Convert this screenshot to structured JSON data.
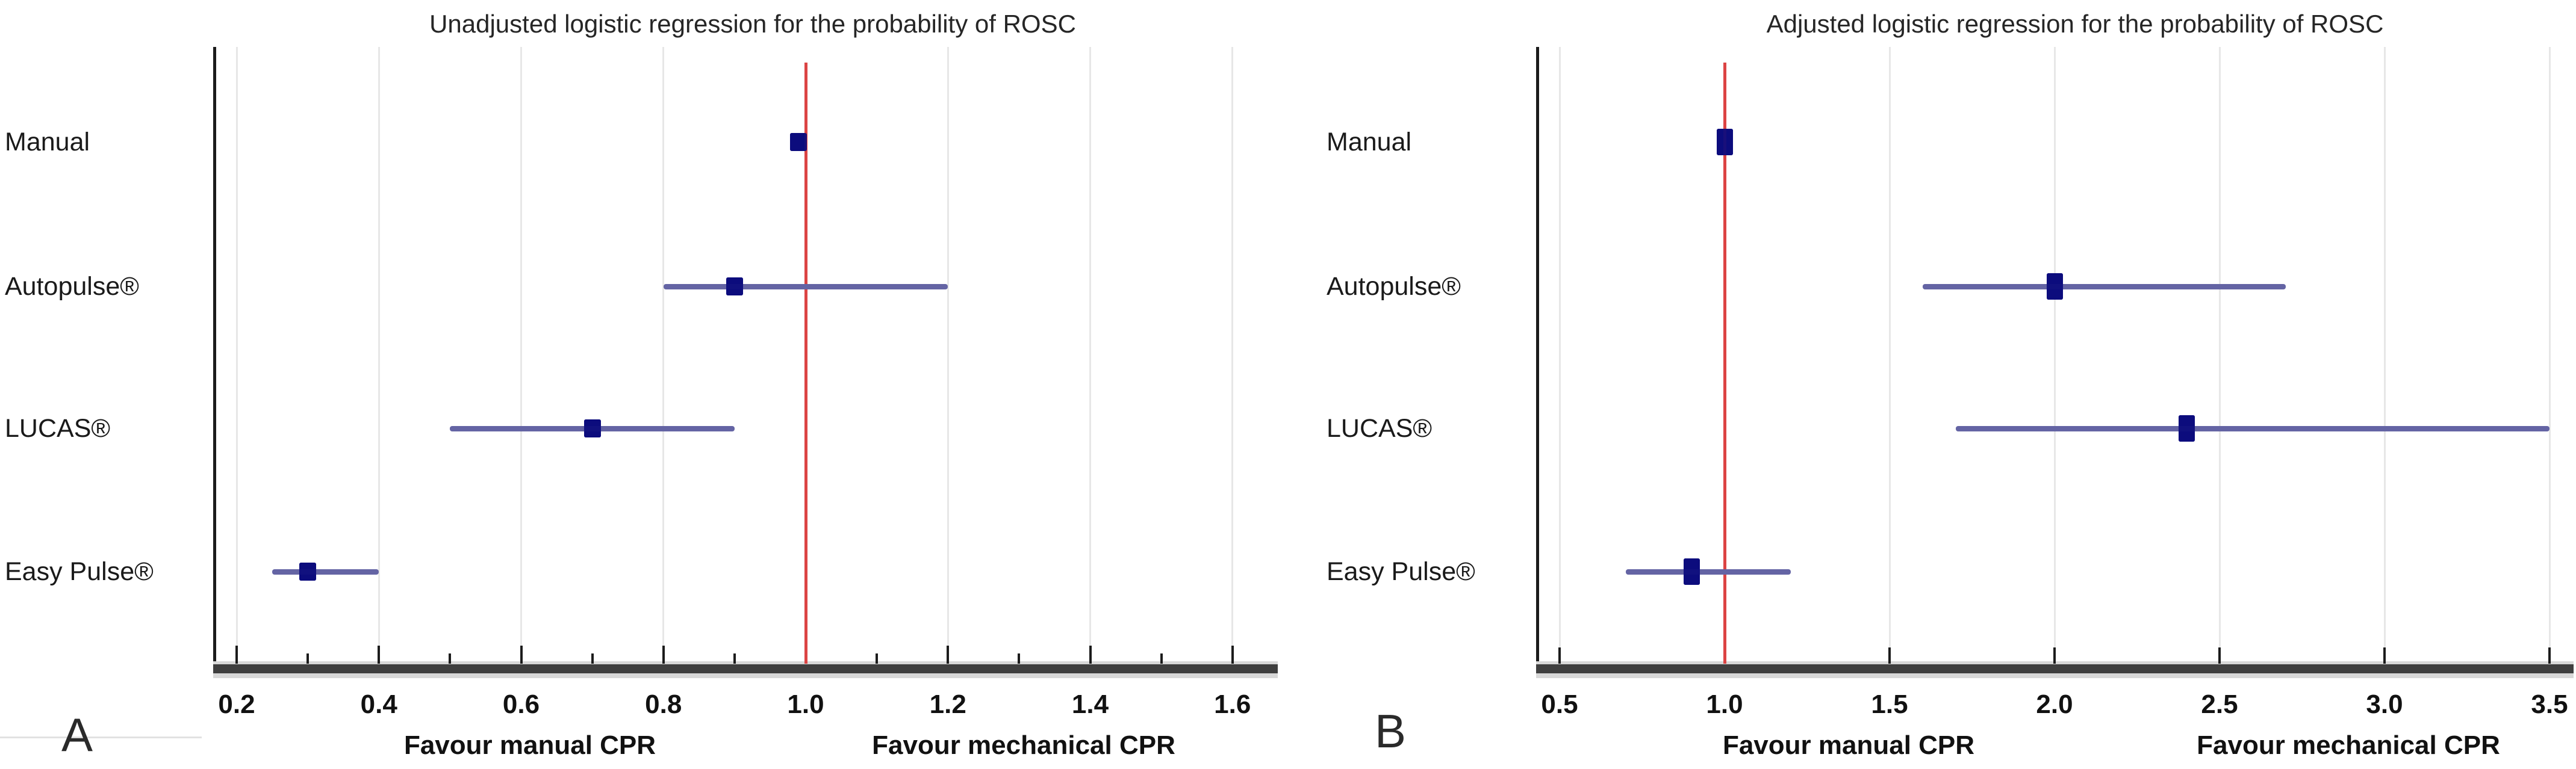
{
  "colors": {
    "reference_line": "#dc4444",
    "marker": "#0d0d7d",
    "ci_line": "#6464a4",
    "gridline": "#e7e7e7",
    "axis": "#1c1c1c",
    "axis_bar": "#3f3f3f",
    "axis_bar_edge": "#d8d8d8",
    "text": "#1a1a1a"
  },
  "chart_data": [
    {
      "type": "scatter",
      "variant": "forest_plot_horizontal_ci",
      "panel_letter": "A",
      "title": "Unadjusted logistic regression for the probability of ROSC",
      "categories": [
        "Manual",
        "Autopulse®",
        "LUCAS®",
        "Easy Pulse®"
      ],
      "series": [
        {
          "name": "Odds ratio",
          "values": [
            0.99,
            0.9,
            0.7,
            0.3
          ]
        },
        {
          "name": "95% CI lower",
          "values": [
            null,
            0.8,
            0.5,
            0.25
          ]
        },
        {
          "name": "95% CI upper",
          "values": [
            null,
            1.2,
            0.9,
            0.4
          ]
        }
      ],
      "xlim": [
        0.2,
        1.6
      ],
      "x_ticks": {
        "major_values": [
          0.2,
          0.4,
          0.6,
          0.8,
          1.0,
          1.2,
          1.4,
          1.6
        ],
        "major_labels": [
          "0.2",
          "0.4",
          "0.6",
          "0.8",
          "1.0",
          "1.2",
          "1.4",
          "1.6"
        ],
        "minor_values": [
          0.3,
          0.5,
          0.7,
          0.9,
          1.1,
          1.3,
          1.5
        ]
      },
      "reference_line_x": 1.0,
      "xlabel_left": "Favour manual CPR",
      "xlabel_right": "Favour mechanical CPR",
      "ylabel": "",
      "grid": "vertical-at-major-ticks",
      "legend_position": "none"
    },
    {
      "type": "scatter",
      "variant": "forest_plot_horizontal_ci",
      "panel_letter": "B",
      "title": "Adjusted logistic regression for the probability of ROSC",
      "categories": [
        "Manual",
        "Autopulse®",
        "LUCAS®",
        "Easy Pulse®"
      ],
      "series": [
        {
          "name": "Odds ratio",
          "values": [
            1.0,
            2.0,
            2.4,
            0.9
          ]
        },
        {
          "name": "95% CI lower",
          "values": [
            null,
            1.6,
            1.7,
            0.7
          ]
        },
        {
          "name": "95% CI upper",
          "values": [
            null,
            2.7,
            3.5,
            1.2
          ]
        }
      ],
      "xlim": [
        0.5,
        3.5
      ],
      "x_ticks": {
        "major_values": [
          0.5,
          1.0,
          1.5,
          2.0,
          2.5,
          3.0,
          3.5
        ],
        "major_labels": [
          "0.5",
          "1.0",
          "1.5",
          "2.0",
          "2.5",
          "3.0",
          "3.5"
        ],
        "minor_values": []
      },
      "reference_line_x": 1.0,
      "xlabel_left": "Favour manual CPR",
      "xlabel_right": "Favour mechanical CPR",
      "ylabel": "",
      "grid": "vertical-at-major-ticks",
      "legend_position": "none"
    }
  ]
}
